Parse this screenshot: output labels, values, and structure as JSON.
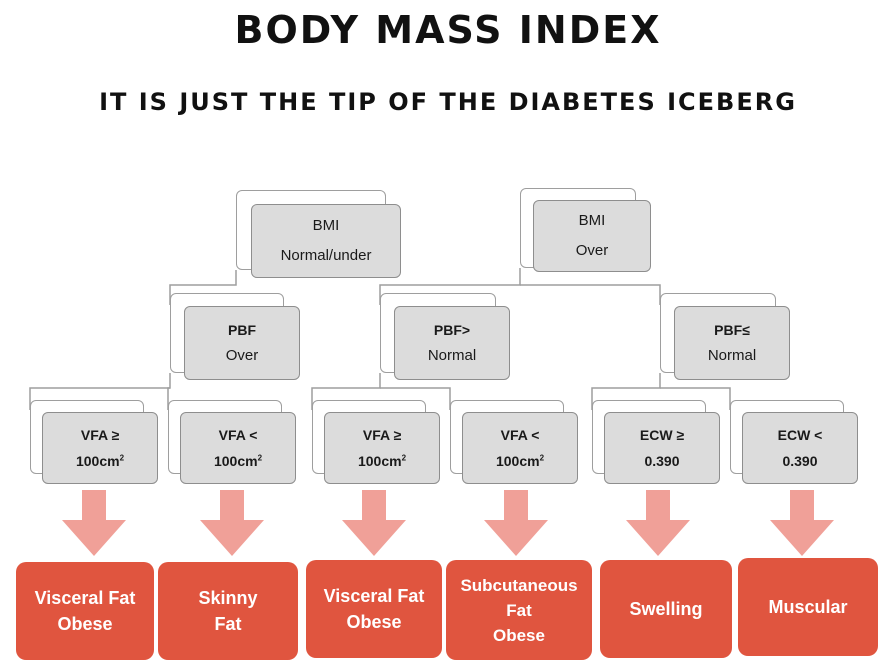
{
  "header": {
    "title": "BODY MASS INDEX",
    "subtitle": "IT IS JUST THE TIP OF THE DIABETES ICEBERG"
  },
  "level1": [
    {
      "line1": "BMI",
      "line2": "Normal/under"
    },
    {
      "line1": "BMI",
      "line2": "Over"
    }
  ],
  "level2": [
    {
      "line1": "PBF",
      "line2": "Over"
    },
    {
      "line1": "PBF>",
      "line2": "Normal"
    },
    {
      "line1": "PBF≤",
      "line2": "Normal"
    }
  ],
  "level3": [
    {
      "line1": "VFA ≥",
      "line2": "100cm",
      "sup": "2"
    },
    {
      "line1": "VFA <",
      "line2": "100cm",
      "sup": "2"
    },
    {
      "line1": "VFA ≥",
      "line2": "100cm",
      "sup": "2"
    },
    {
      "line1": "VFA <",
      "line2": "100cm",
      "sup": "2"
    },
    {
      "line1": "ECW ≥",
      "line2": "0.390"
    },
    {
      "line1": "ECW <",
      "line2": "0.390"
    }
  ],
  "outcomes": [
    {
      "line1": "Visceral Fat",
      "line2": "Obese"
    },
    {
      "line1": "Skinny",
      "line2": "Fat"
    },
    {
      "line1": "Visceral Fat",
      "line2": "Obese"
    },
    {
      "line1": "Subcutaneous",
      "line2": "Fat",
      "line3": "Obese"
    },
    {
      "line1": "Swelling"
    },
    {
      "line1": "Muscular"
    }
  ],
  "colors": {
    "node_fill": "#dcdcdc",
    "arrow": "#f0a098",
    "outcome": "#e0553f"
  }
}
